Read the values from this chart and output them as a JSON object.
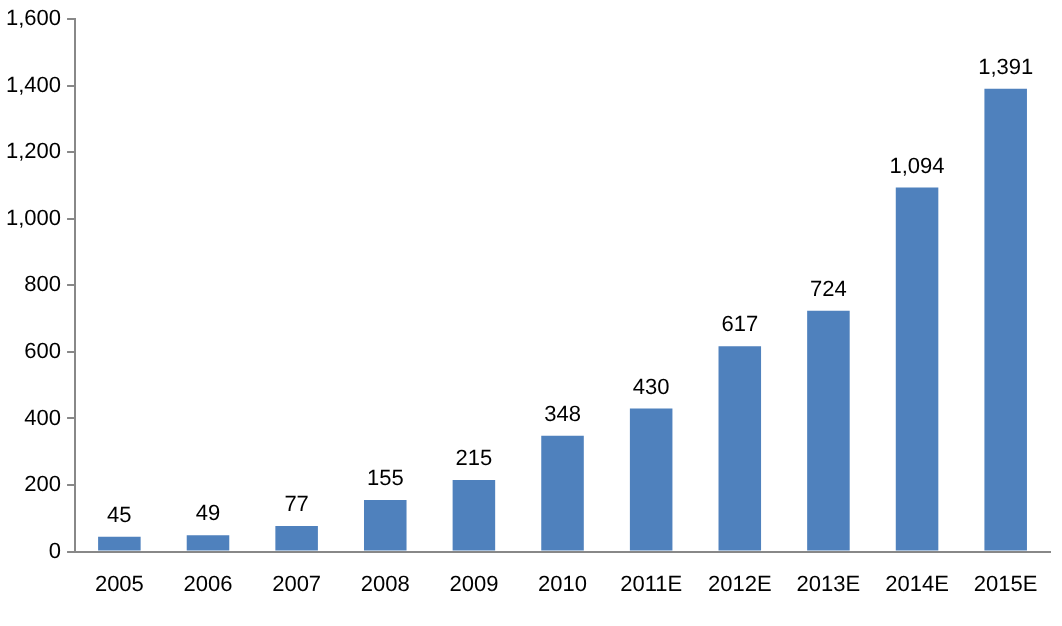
{
  "chart_data": {
    "type": "bar",
    "categories": [
      "2005",
      "2006",
      "2007",
      "2008",
      "2009",
      "2010",
      "2011E",
      "2012E",
      "2013E",
      "2014E",
      "2015E"
    ],
    "values": [
      45,
      49,
      77,
      155,
      215,
      348,
      430,
      617,
      724,
      1094,
      1391
    ],
    "value_labels": [
      "45",
      "49",
      "77",
      "155",
      "215",
      "348",
      "430",
      "617",
      "724",
      "1,094",
      "1,391"
    ],
    "color": "#4f81bd",
    "ylim": [
      0,
      1600
    ],
    "yticks": [
      {
        "value": 0,
        "label": "0"
      },
      {
        "value": 200,
        "label": "200"
      },
      {
        "value": 400,
        "label": "400"
      },
      {
        "value": 600,
        "label": "600"
      },
      {
        "value": 800,
        "label": "800"
      },
      {
        "value": 1000,
        "label": "1,000"
      },
      {
        "value": 1200,
        "label": "1,200"
      },
      {
        "value": 1400,
        "label": "1,400"
      },
      {
        "value": 1600,
        "label": "1,600"
      }
    ],
    "grid": false,
    "legend": false
  }
}
